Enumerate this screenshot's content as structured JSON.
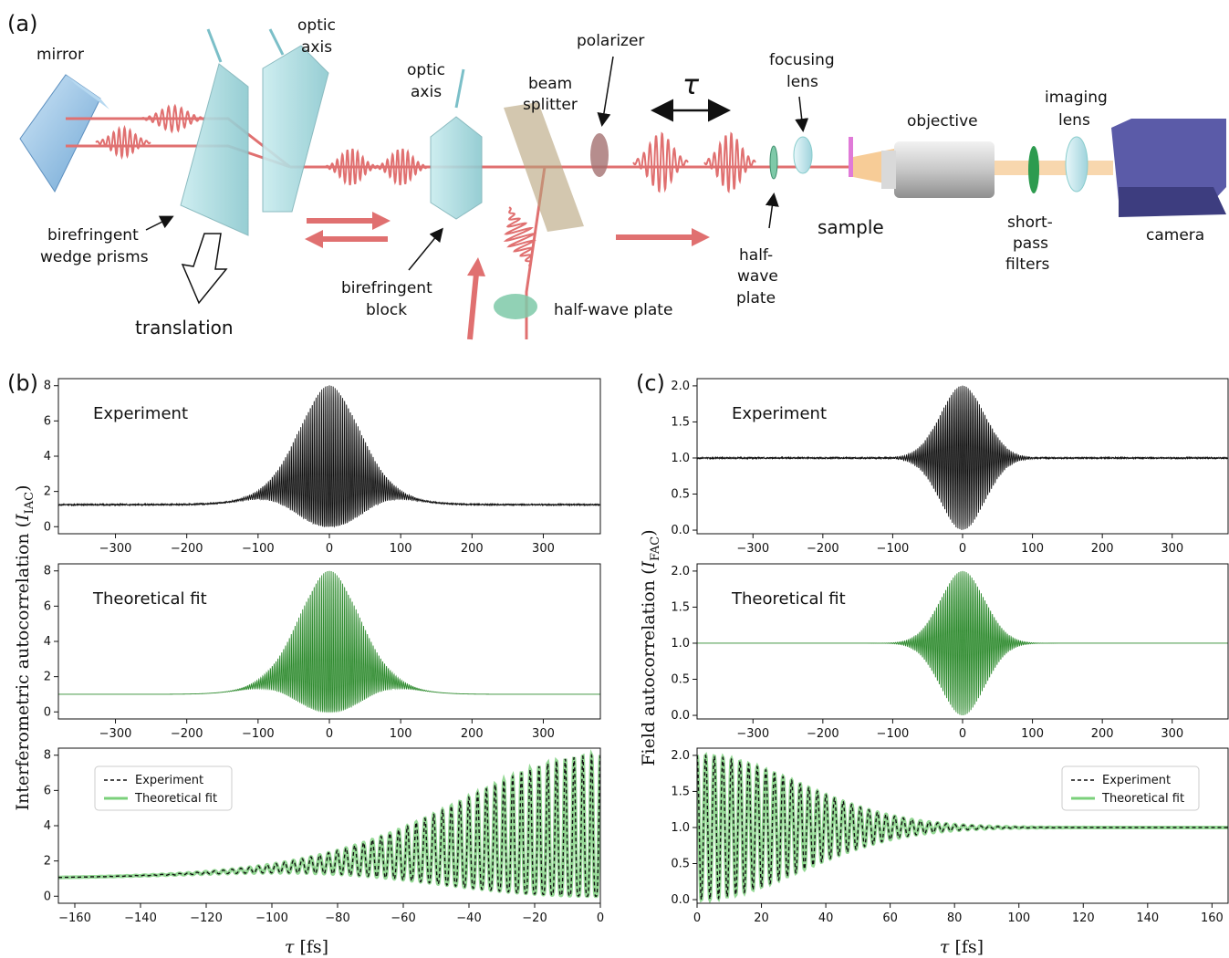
{
  "panel_labels": {
    "a": "(a)",
    "b": "(b)",
    "c": "(c)"
  },
  "setup": {
    "mirror": "mirror",
    "optic_axis_1": [
      "optic",
      "axis"
    ],
    "optic_axis_2": [
      "optic",
      "axis"
    ],
    "polarizer": "polarizer",
    "beam_splitter": [
      "beam",
      "splitter"
    ],
    "tau": "τ",
    "focusing_lens": [
      "focusing",
      "lens"
    ],
    "objective": "objective",
    "imaging_lens": [
      "imaging",
      "lens"
    ],
    "birefringent_wedge_prisms": [
      "birefringent",
      "wedge prisms"
    ],
    "translation": "translation",
    "birefringent_block": [
      "birefringent",
      "block"
    ],
    "half_wave_plate_bottom": "half-wave plate",
    "half_wave_plate_right": [
      "half-",
      "wave",
      "plate"
    ],
    "sample": "sample",
    "short_pass_filters": [
      "short-",
      "pass",
      "filters"
    ],
    "camera": "camera"
  },
  "colors": {
    "experiment": "#111111",
    "fit": "#2e8b2e",
    "fit_light": "#7bd07b",
    "beam": "#e07070",
    "prism": "#a8d8dc",
    "camera": "#5b5ba8"
  },
  "y_labels": {
    "b_main": "Interferometric autocorrelation (",
    "b_sym": "I",
    "b_sub": "IAC",
    "c_main": "Field autocorrelation (",
    "c_sym": "I",
    "c_sub": "FAC",
    "close": ")"
  },
  "x_label": {
    "sym": "τ",
    "unit": "[fs]"
  },
  "chart_data": [
    {
      "id": "b1",
      "type": "line",
      "annotation": "Experiment",
      "xlim": [
        -380,
        380
      ],
      "ylim": [
        -0.4,
        8.4
      ],
      "xticks": [
        -300,
        -200,
        -100,
        0,
        100,
        200,
        300
      ],
      "yticks": [
        0,
        2,
        4,
        6,
        8
      ],
      "series": [
        {
          "kind": "iac",
          "color": "#111111",
          "baseline": 1.25,
          "peak": 8,
          "envelope_width_fs": 60,
          "noise": true
        }
      ]
    },
    {
      "id": "b2",
      "type": "line",
      "annotation": "Theoretical fit",
      "xlim": [
        -380,
        380
      ],
      "ylim": [
        -0.4,
        8.4
      ],
      "xticks": [
        -300,
        -200,
        -100,
        0,
        100,
        200,
        300
      ],
      "yticks": [
        0,
        2,
        4,
        6,
        8
      ],
      "series": [
        {
          "kind": "iac",
          "color": "#2e8b2e",
          "baseline": 1.0,
          "peak": 8,
          "envelope_width_fs": 60,
          "noise": false
        }
      ]
    },
    {
      "id": "b3",
      "type": "line",
      "xlim": [
        -165,
        0
      ],
      "ylim": [
        -0.4,
        8.4
      ],
      "xticks": [
        -160,
        -140,
        -120,
        -100,
        -80,
        -60,
        -40,
        -20,
        0
      ],
      "yticks": [
        0,
        2,
        4,
        6,
        8
      ],
      "legend_position": "top-left",
      "series": [
        {
          "name": "Theoretical fit",
          "kind": "iac",
          "color": "#7bd07b",
          "style": "solid",
          "baseline": 1.0,
          "peak": 8,
          "envelope_width_fs": 60
        },
        {
          "name": "Experiment",
          "kind": "iac",
          "color": "#111111",
          "style": "dashed",
          "baseline": 1.0,
          "peak": 8,
          "envelope_width_fs": 60
        }
      ]
    },
    {
      "id": "c1",
      "type": "line",
      "annotation": "Experiment",
      "xlim": [
        -380,
        380
      ],
      "ylim": [
        -0.05,
        2.1
      ],
      "xticks": [
        -300,
        -200,
        -100,
        0,
        100,
        200,
        300
      ],
      "yticks": [
        0.0,
        0.5,
        1.0,
        1.5,
        2.0
      ],
      "series": [
        {
          "kind": "fac",
          "color": "#111111",
          "baseline": 1.0,
          "peak": 2,
          "envelope_width_fs": 45,
          "noise": true
        }
      ]
    },
    {
      "id": "c2",
      "type": "line",
      "annotation": "Theoretical fit",
      "xlim": [
        -380,
        380
      ],
      "ylim": [
        -0.05,
        2.1
      ],
      "xticks": [
        -300,
        -200,
        -100,
        0,
        100,
        200,
        300
      ],
      "yticks": [
        0.0,
        0.5,
        1.0,
        1.5,
        2.0
      ],
      "series": [
        {
          "kind": "fac",
          "color": "#2e8b2e",
          "baseline": 1.0,
          "peak": 2,
          "envelope_width_fs": 45,
          "noise": false
        }
      ]
    },
    {
      "id": "c3",
      "type": "line",
      "xlim": [
        0,
        165
      ],
      "ylim": [
        -0.05,
        2.1
      ],
      "xticks": [
        0,
        20,
        40,
        60,
        80,
        100,
        120,
        140,
        160
      ],
      "yticks": [
        0.0,
        0.5,
        1.0,
        1.5,
        2.0
      ],
      "legend_position": "top-right",
      "series": [
        {
          "name": "Theoretical fit",
          "kind": "fac",
          "color": "#7bd07b",
          "style": "solid",
          "baseline": 1.0,
          "peak": 2,
          "envelope_width_fs": 45
        },
        {
          "name": "Experiment",
          "kind": "fac",
          "color": "#111111",
          "style": "dashed",
          "baseline": 1.0,
          "peak": 2,
          "envelope_width_fs": 45
        }
      ]
    }
  ]
}
